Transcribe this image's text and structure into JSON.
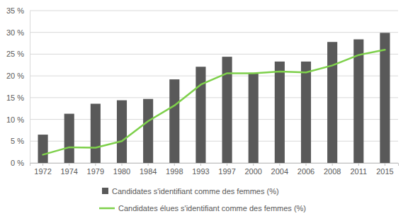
{
  "chart_data": {
    "type": "bar",
    "categories": [
      "1972",
      "1974",
      "1979",
      "1980",
      "1984",
      "1998",
      "1993",
      "1997",
      "2000",
      "2004",
      "2006",
      "2008",
      "2011",
      "2015"
    ],
    "series": [
      {
        "name": "Candidates s'identifiant comme des femmes (%)",
        "type": "bar",
        "color": "#595959",
        "values": [
          6.5,
          11.3,
          13.6,
          14.4,
          14.7,
          19.2,
          22.1,
          24.4,
          20.7,
          23.3,
          23.3,
          27.8,
          28.4,
          29.9
        ]
      },
      {
        "name": "Candidates élues s'identifiant comme des femmes (%)",
        "type": "line",
        "color": "#7ed04b",
        "values": [
          1.9,
          3.6,
          3.5,
          5.0,
          9.6,
          13.2,
          18.0,
          20.6,
          20.6,
          21.0,
          20.8,
          22.4,
          24.8,
          26.0
        ]
      }
    ],
    "ylim": [
      0,
      35
    ],
    "yticks": [
      {
        "value": 0,
        "label": "0 %"
      },
      {
        "value": 5,
        "label": "5 %"
      },
      {
        "value": 10,
        "label": "10 %"
      },
      {
        "value": 15,
        "label": "15 %"
      },
      {
        "value": 20,
        "label": "20 %"
      },
      {
        "value": 25,
        "label": "25 %"
      },
      {
        "value": 30,
        "label": "30 %"
      },
      {
        "value": 35,
        "label": "35 %"
      }
    ],
    "grid": true,
    "legend": "bottom"
  }
}
